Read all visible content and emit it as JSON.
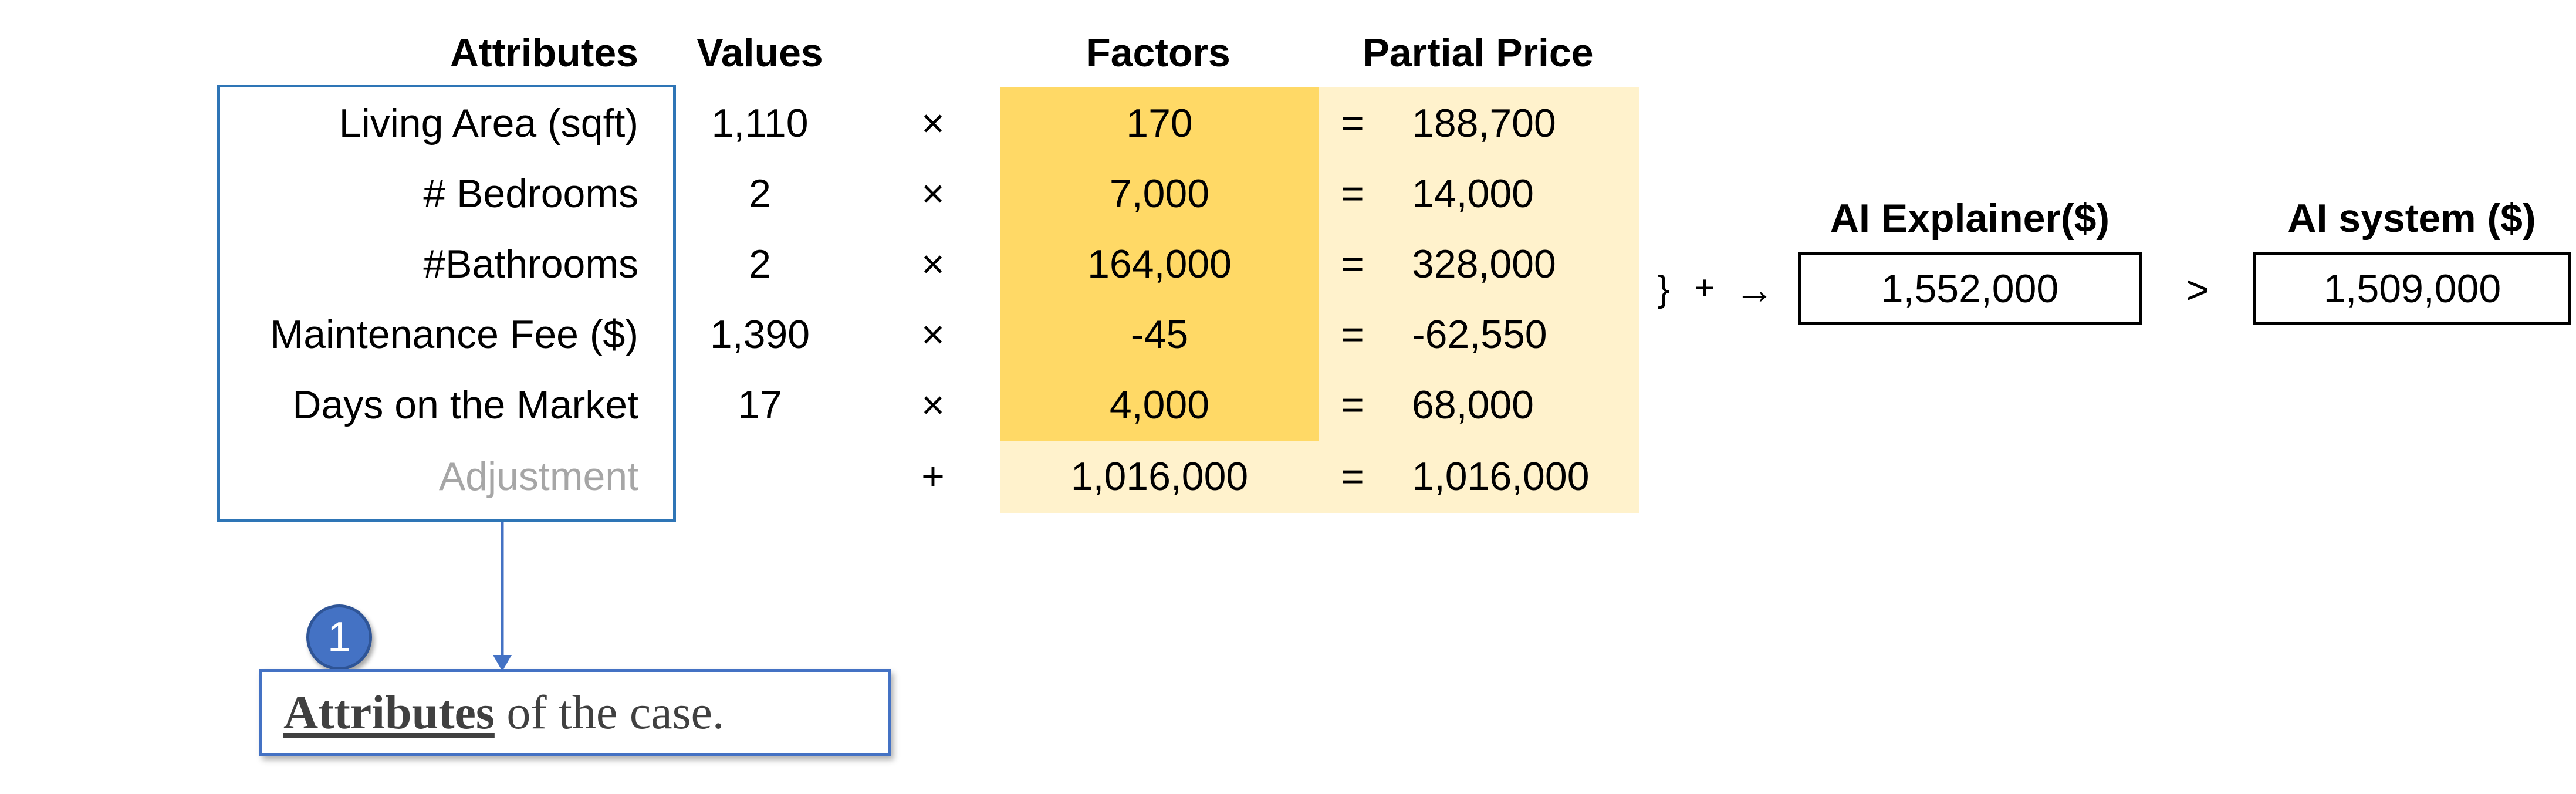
{
  "headers": {
    "attributes": "Attributes",
    "values": "Values",
    "factors": "Factors",
    "partial_price": "Partial Price"
  },
  "rows": [
    {
      "attribute": "Living Area (sqft)",
      "value": "1,110",
      "op": "×",
      "factor": "170",
      "eq": "=",
      "partial": "188,700"
    },
    {
      "attribute": "# Bedrooms",
      "value": "2",
      "op": "×",
      "factor": "7,000",
      "eq": "=",
      "partial": "14,000"
    },
    {
      "attribute": "#Bathrooms",
      "value": "2",
      "op": "×",
      "factor": "164,000",
      "eq": "=",
      "partial": "328,000"
    },
    {
      "attribute": "Maintenance Fee ($)",
      "value": "1,390",
      "op": "×",
      "factor": "-45",
      "eq": "=",
      "partial": "-62,550"
    },
    {
      "attribute": "Days on the Market",
      "value": "17",
      "op": "×",
      "factor": "4,000",
      "eq": "=",
      "partial": "68,000"
    }
  ],
  "adjustment": {
    "attribute": "Adjustment",
    "op": "+",
    "factor": "1,016,000",
    "eq": "=",
    "partial": "1,016,000"
  },
  "sum_symbols": {
    "brace": "}",
    "plus": "+",
    "arrow": "→"
  },
  "ai_explainer": {
    "label": "AI Explainer($)",
    "value": "1,552,000"
  },
  "comparison": ">",
  "ai_system": {
    "label": "AI system ($)",
    "value": "1,509,000"
  },
  "callout": {
    "number": "1",
    "bold": "Attributes",
    "rest": " of the case."
  },
  "colors": {
    "factor_fill": "#ffd966",
    "partial_fill": "#fff2cc",
    "callout_blue": "#4472c4",
    "muted_text": "#a6a6a6"
  }
}
